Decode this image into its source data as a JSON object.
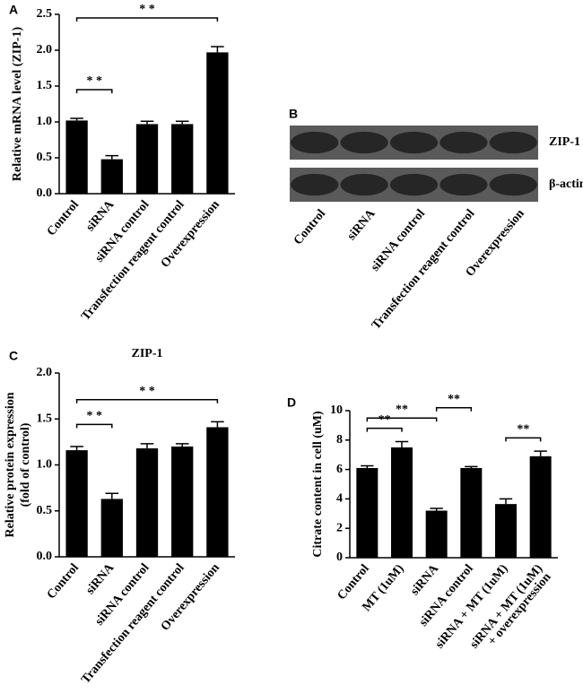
{
  "chart_data": [
    {
      "type": "bar",
      "panel": "A",
      "ylabel": "Relative mRNA level (ZIP-1)",
      "categories": [
        "Control",
        "siRNA",
        "siRNA control",
        "Transfection reagent control",
        "Overexpression"
      ],
      "values": [
        1.02,
        0.48,
        0.97,
        0.97,
        1.97
      ],
      "errors": [
        0.03,
        0.05,
        0.04,
        0.04,
        0.08
      ],
      "color": "#000000",
      "ylim": [
        0,
        2.5
      ],
      "yticks": [
        {
          "value": 0,
          "label": "0.0"
        },
        0.5,
        {
          "value": 1,
          "label": "1.0"
        },
        1.5,
        {
          "value": 2,
          "label": "2.0"
        },
        2.5
      ],
      "brackets": [
        {
          "from": 0,
          "to": 1,
          "text": "* *"
        },
        {
          "from": 0,
          "to": 4,
          "text": "* *"
        }
      ]
    },
    {
      "type": "blot",
      "panel": "B",
      "rows": [
        "ZIP-1",
        "β-actin"
      ],
      "categories": [
        "Control",
        "siRNA",
        "siRNA control",
        "Transfection reagent control",
        "Overexpression"
      ]
    },
    {
      "type": "bar",
      "panel": "C",
      "title": "ZIP-1",
      "ylabel": [
        "Relative protein expression",
        "(fold of control)"
      ],
      "categories": [
        "Control",
        "siRNA",
        "siRNA control",
        "Transfection reagent control",
        "Overexpression"
      ],
      "values": [
        1.16,
        0.63,
        1.18,
        1.2,
        1.41
      ],
      "errors": [
        0.04,
        0.06,
        0.05,
        0.03,
        0.06
      ],
      "color": "#000000",
      "ylim": [
        0,
        2
      ],
      "yticks": [
        {
          "value": 0,
          "label": "0.0"
        },
        0.5,
        {
          "value": 1,
          "label": "1.0"
        },
        1.5,
        {
          "value": 2,
          "label": "2.0"
        }
      ],
      "brackets": [
        {
          "from": 0,
          "to": 1,
          "text": "* *"
        },
        {
          "from": 0,
          "to": 4,
          "text": "* *"
        }
      ]
    },
    {
      "type": "bar",
      "panel": "D",
      "ylabel": "Citrate content in cell  (uM)",
      "categories": [
        "Control",
        "MT (1uM)",
        "siRNA",
        "siRNA control",
        "siRNA + MT (1uM)",
        [
          "siRNA + MT (1uM)",
          "+ overexpression"
        ]
      ],
      "values": [
        6.1,
        7.5,
        3.2,
        6.1,
        3.65,
        6.9
      ],
      "errors": [
        0.15,
        0.4,
        0.15,
        0.1,
        0.35,
        0.35
      ],
      "color": "#000000",
      "ylim": [
        0,
        10
      ],
      "yticks": [
        0,
        2,
        4,
        6,
        8,
        10
      ],
      "brackets": [
        {
          "from": 0,
          "to": 1,
          "text": "**"
        },
        {
          "from": 0,
          "to": 2,
          "text": "**"
        },
        {
          "from": 2,
          "to": 3,
          "text": "**"
        },
        {
          "from": 4,
          "to": 5,
          "text": "**"
        }
      ]
    }
  ]
}
